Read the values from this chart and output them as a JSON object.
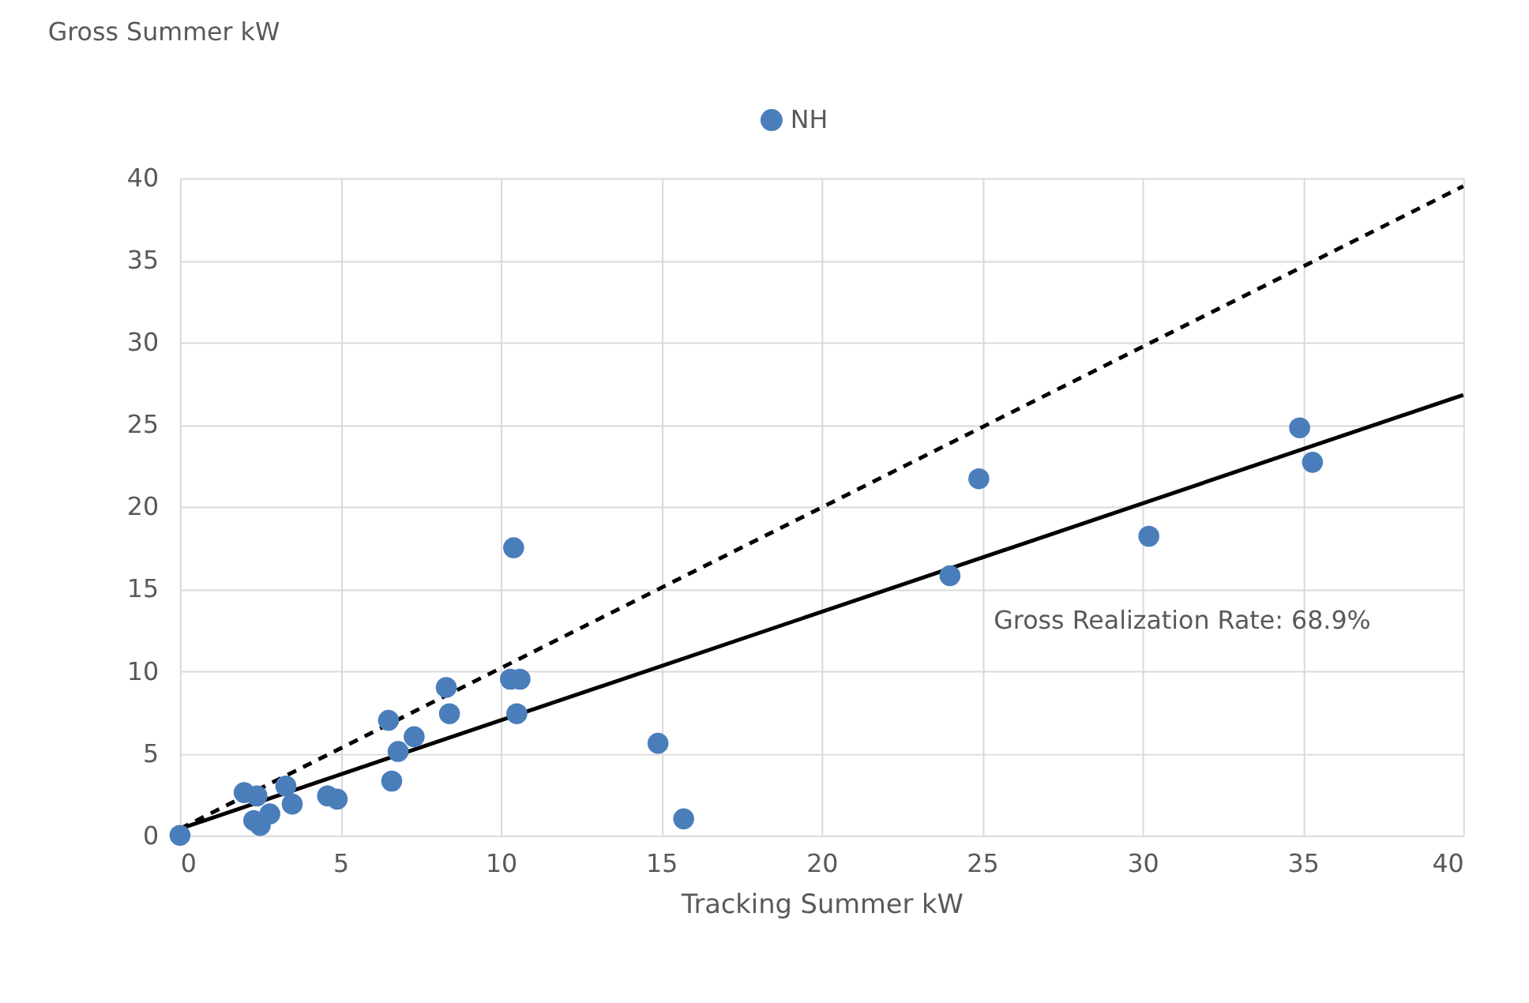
{
  "chart_data": {
    "type": "scatter",
    "xlabel": "Tracking Summer kW",
    "ylabel": "Gross Summer kW",
    "xlim": [
      0,
      40
    ],
    "ylim": [
      0,
      40
    ],
    "xticks": [
      0,
      5,
      10,
      15,
      20,
      25,
      30,
      35,
      40
    ],
    "yticks": [
      0,
      5,
      10,
      15,
      20,
      25,
      30,
      35,
      40
    ],
    "grid": true,
    "legend": "top",
    "series": [
      {
        "name": "NH",
        "marker": "circle",
        "color": "#4a7ebb",
        "x": [
          0,
          2.0,
          2.4,
          2.3,
          2.5,
          2.8,
          3.3,
          3.5,
          4.6,
          4.9,
          6.5,
          6.6,
          6.8,
          7.3,
          8.3,
          8.4,
          10.3,
          10.6,
          10.5,
          10.4,
          14.9,
          15.7,
          24.0,
          24.9,
          30.2,
          34.9,
          35.3
        ],
        "values": [
          0,
          2.6,
          2.4,
          0.9,
          0.6,
          1.3,
          3.0,
          1.9,
          2.4,
          2.2,
          7.0,
          3.3,
          5.1,
          6.0,
          9.0,
          7.4,
          9.5,
          9.5,
          7.4,
          17.5,
          5.6,
          1.0,
          15.8,
          21.7,
          18.2,
          24.8,
          22.7
        ]
      },
      {
        "type": "line",
        "marker": "none",
        "color": "#000000",
        "line_style": "dashed",
        "x": [
          0,
          40
        ],
        "values": [
          0.4,
          39.5
        ]
      },
      {
        "type": "line",
        "marker": "none",
        "color": "#000000",
        "x": [
          0,
          40
        ],
        "values": [
          0.4,
          26.8
        ]
      }
    ],
    "annotations": [
      "Gross Realization Rate: 68.9%"
    ]
  }
}
